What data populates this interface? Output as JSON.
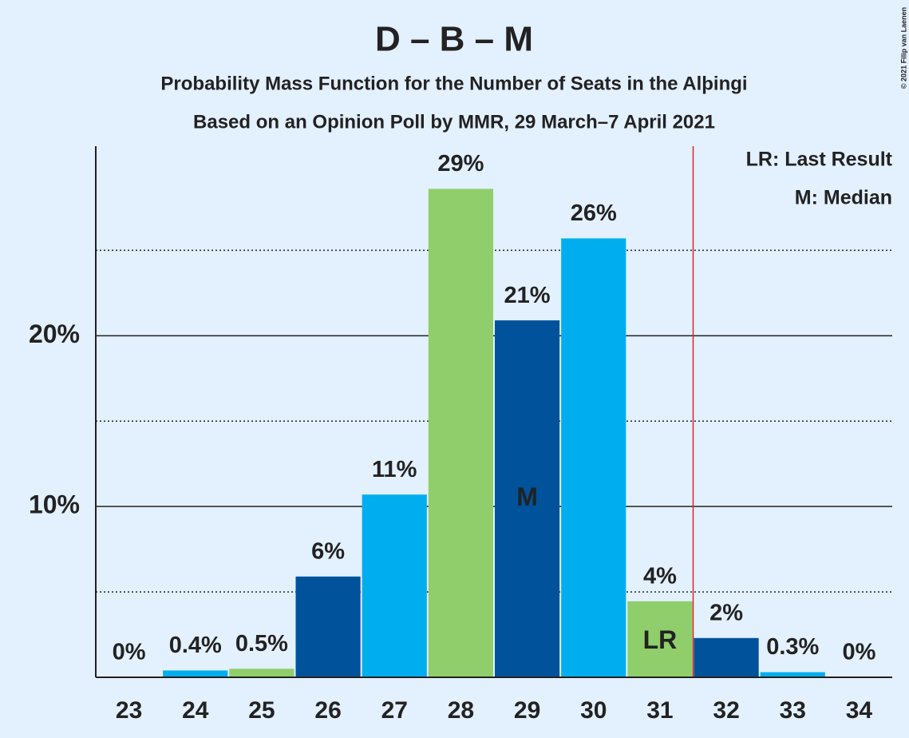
{
  "chart_data": {
    "type": "bar",
    "title": "D – B – M",
    "subtitle": "Probability Mass Function for the Number of Seats in the Alþingi",
    "subtitle2": "Based on an Opinion Poll by MMR, 29 March–7 April 2021",
    "categories": [
      "23",
      "24",
      "25",
      "26",
      "27",
      "28",
      "29",
      "30",
      "31",
      "32",
      "33",
      "34"
    ],
    "values": [
      0,
      0.4,
      0.5,
      5.9,
      10.7,
      28.6,
      20.9,
      25.7,
      4.45,
      2.3,
      0.3,
      0
    ],
    "value_labels": [
      "0%",
      "0.4%",
      "0.5%",
      "6%",
      "11%",
      "29%",
      "21%",
      "26%",
      "4%",
      "2%",
      "0.3%",
      "0%"
    ],
    "colors": [
      "#00539b",
      "#00aeef",
      "#8fce6a",
      "#00539b",
      "#00aeef",
      "#8fce6a",
      "#00539b",
      "#00aeef",
      "#8fce6a",
      "#00539b",
      "#00aeef",
      "#8fce6a"
    ],
    "ylim": [
      0,
      31.1
    ],
    "yticks": [
      {
        "value": 10,
        "label": "10%"
      },
      {
        "value": 20,
        "label": "20%"
      }
    ],
    "minor_yticks": [
      5,
      15,
      25
    ],
    "median": {
      "category": "29",
      "label": "M"
    },
    "last_result": {
      "category": "31",
      "label": "LR"
    },
    "legend": [
      "LR: Last Result",
      "M: Median"
    ],
    "copyright": "© 2021 Filip van Laenen"
  }
}
